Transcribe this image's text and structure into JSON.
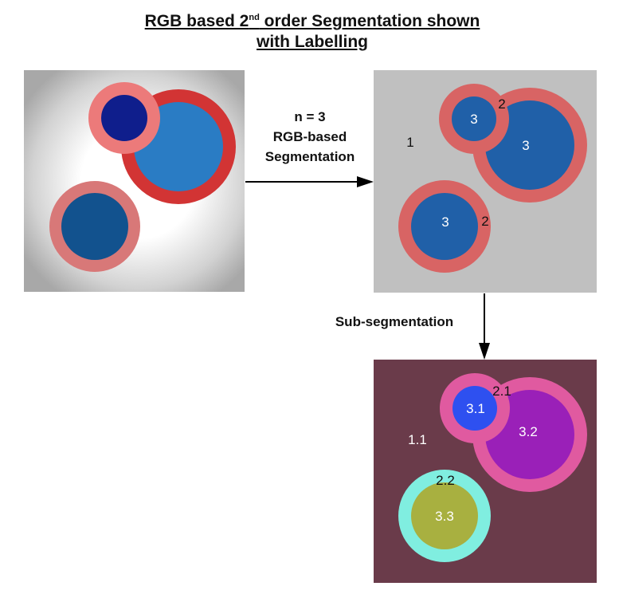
{
  "title": {
    "part1": "RGB based 2",
    "sup": "nd",
    "part2": " order Segmentation shown",
    "line2": "with Labelling"
  },
  "arrow1_label": {
    "line1": "n = 3",
    "line2": "RGB-based",
    "line3": "Segmentation"
  },
  "arrow2_label": "Sub-segmentation",
  "panel2_labels": {
    "background": "1",
    "small_ring": "2",
    "small_core": "3",
    "big_core": "3",
    "bottom_ring": "2",
    "bottom_core": "3"
  },
  "panel3_labels": {
    "background": "1.1",
    "small_ring": "2.1",
    "small_core": "3.1",
    "big_core": "3.2",
    "bottom_ring": "2.2",
    "bottom_core": "3.3"
  },
  "colors": {
    "panel1_edge": "#a8a8a8",
    "panel2_bg": "#c0c0c0",
    "panel2_ring": "#d86464",
    "panel2_core": "#2060a8",
    "panel3_bg": "#6a3b4a",
    "panel3_pink": "#e05aa0",
    "panel3_blue": "#2e50f0",
    "panel3_purple": "#9a20b8",
    "panel3_cyan": "#80eee0",
    "panel3_olive": "#a8b040"
  }
}
